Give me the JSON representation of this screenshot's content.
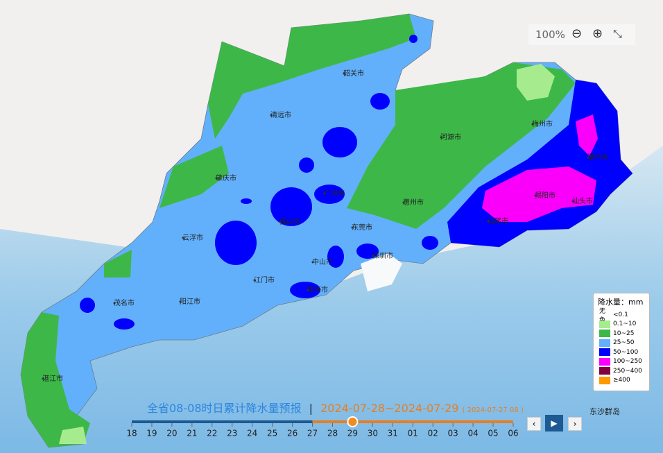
{
  "zoom": {
    "level": "100%"
  },
  "cities": [
    "韶关市",
    "清远市",
    "河源市",
    "梅州市",
    "潮州市",
    "肇庆市",
    "广州市",
    "揭阳市",
    "汕头市",
    "惠州市",
    "佛山市",
    "东莞市",
    "汕尾市",
    "云浮市",
    "中山市",
    "深圳市",
    "江门市",
    "珠海市",
    "茂名市",
    "阳江市",
    "湛江市"
  ],
  "island": "东沙群岛",
  "legend": {
    "title": "降水量：mm",
    "none_label": "无色",
    "items": [
      {
        "label": "<0.1",
        "color": null
      },
      {
        "label": "0.1~10",
        "color": "#a6ec8f"
      },
      {
        "label": "10~25",
        "color": "#3db848"
      },
      {
        "label": "25~50",
        "color": "#62b0fb"
      },
      {
        "label": "50~100",
        "color": "#0000fe"
      },
      {
        "label": "100~250",
        "color": "#fa00fa"
      },
      {
        "label": "250~400",
        "color": "#800040"
      },
      {
        "label": "≥400",
        "color": "#ff9900"
      }
    ]
  },
  "forecast": {
    "title": "全省08-08时日累计降水量预报",
    "separator": "|",
    "range": "2024-07-28~2024-07-29",
    "issued": "( 2024-07-27 08 )"
  },
  "timeline": {
    "ticks": [
      "18",
      "19",
      "20",
      "21",
      "22",
      "23",
      "24",
      "25",
      "26",
      "27",
      "28",
      "29",
      "30",
      "31",
      "01",
      "02",
      "03",
      "04",
      "05",
      "06"
    ],
    "done_index": 9,
    "current_index": 11
  }
}
